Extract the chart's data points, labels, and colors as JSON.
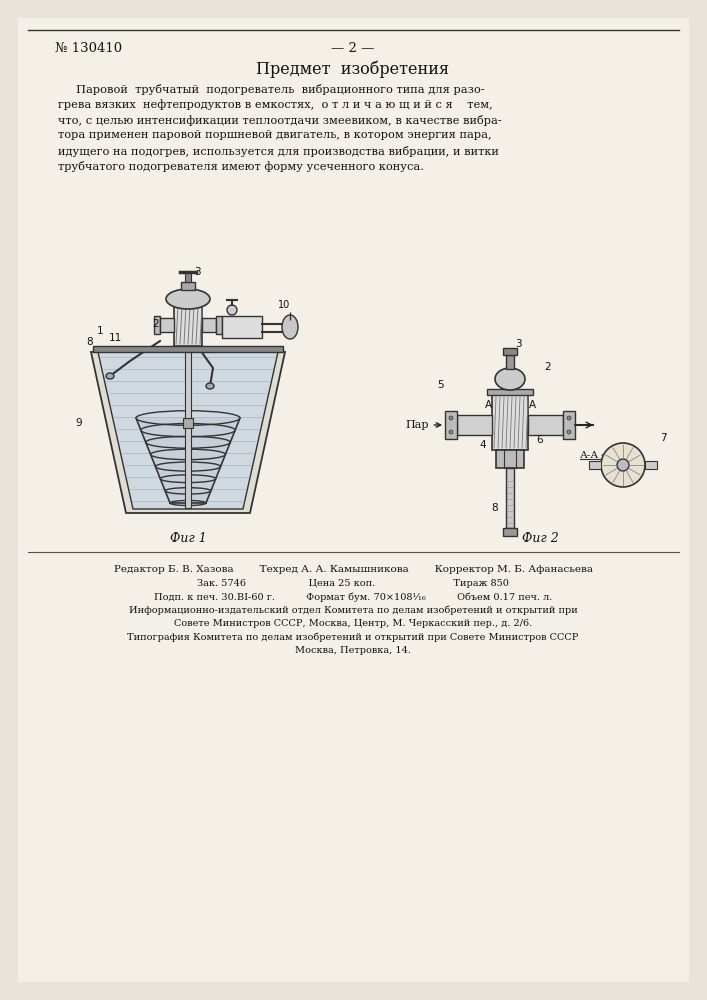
{
  "patent_number": "№ 130410",
  "page_number": "— 2 —",
  "section_title": "Предмет  изобретения",
  "main_text_lines": [
    "     Паровой  трубчатый  подогреватель  вибрационного типа для разо-",
    "грева вязких  нефтепродуктов в емкостях,  о т л и ч а ю щ и й с я    тем,",
    "что, с целью интенсификации теплоотдачи змеевиком, в качестве вибра-",
    "тора применен паровой поршневой двигатель, в котором энергия пара,",
    "идущего на подогрев, используется для производства вибрации, и витки",
    "трубчатого подогревателя имеют форму усеченного конуса."
  ],
  "fig1_caption": "Фиг 1",
  "fig2_caption": "Фиг 2",
  "footer_line1": "Редактор Б. В. Хазова        Техред А. А. Камышникова        Корректор М. Б. Афанасьева",
  "footer_line2": "Зак. 5746                    Цена 25 коп.                         Тираж 850",
  "footer_line3": "Подп. к печ. 30.ВI-60 г.          Формат бум. 70×108¹⁄₁₆          Объем 0.17 печ. л.",
  "footer_line4": "Информационно-издательский отдел Комитета по делам изобретений и открытий при",
  "footer_line5": "Совете Министров СССР, Москва, Центр, М. Черкасский пер., д. 2/6.",
  "footer_line6": "Типография Комитета по делам изобретений и открытий при Совете Министров СССР",
  "footer_line7": "Москва, Петровка, 14."
}
